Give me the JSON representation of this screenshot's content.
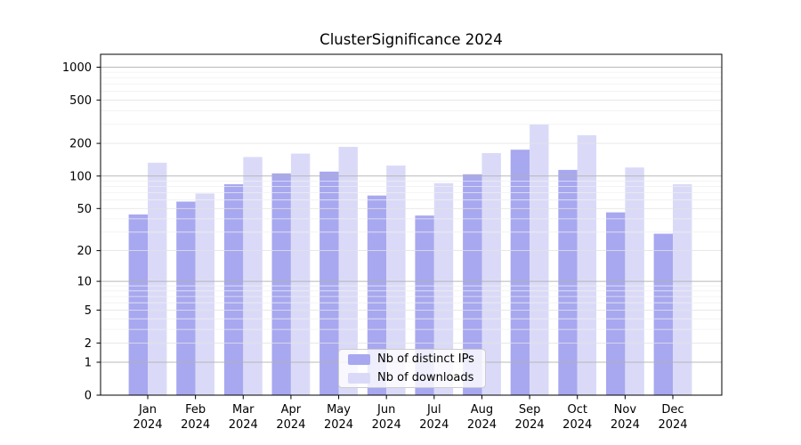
{
  "chart_data": {
    "type": "bar",
    "title": "ClusterSignificance 2024",
    "yscale": "log1p",
    "categories": [
      "Jan 2024",
      "Feb 2024",
      "Mar 2024",
      "Apr 2024",
      "May 2024",
      "Jun 2024",
      "Jul 2024",
      "Aug 2024",
      "Sep 2024",
      "Oct 2024",
      "Nov 2024",
      "Dec 2024"
    ],
    "series": [
      {
        "name": "Nb of distinct IPs",
        "color": "#a8a8f0",
        "values": [
          44,
          58,
          84,
          106,
          110,
          66,
          43,
          104,
          175,
          114,
          46,
          29
        ]
      },
      {
        "name": "Nb of downloads",
        "color": "#dadaf8",
        "values": [
          133,
          69,
          150,
          161,
          186,
          125,
          86,
          163,
          300,
          238,
          120,
          84
        ]
      }
    ],
    "yticks": [
      0,
      1,
      2,
      5,
      10,
      20,
      50,
      100,
      200,
      500,
      1000
    ],
    "ylim": [
      0,
      1000
    ],
    "grid": true,
    "legend_position": "lower center"
  },
  "colors": {
    "background": "#ffffff",
    "frame": "#000000",
    "major_grid": "#b0b0b0",
    "labeled_grid": "#e2e2e2",
    "minor_grid": "#efefef",
    "text": "#000000"
  }
}
